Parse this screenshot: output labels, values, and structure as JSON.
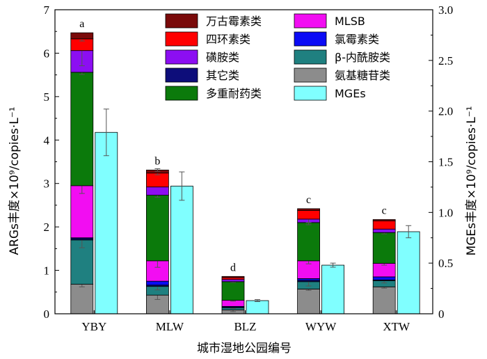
{
  "chart_data": {
    "type": "bar",
    "xlabel": "城市湿地公园编号",
    "ylabel_left": "ARGs丰度×10⁹/copies·L⁻¹",
    "ylabel_right": "MGEs丰度×10⁹/copies·L⁻¹",
    "ylim_left": [
      0,
      7
    ],
    "ylim_right": [
      0,
      3.0
    ],
    "yticks_left": [
      "0",
      "1",
      "2",
      "3",
      "4",
      "5",
      "6",
      "7"
    ],
    "yticks_right": [
      "0",
      "0.5",
      "1.0",
      "1.5",
      "2.0",
      "2.5",
      "3.0"
    ],
    "categories": [
      "YBY",
      "MLW",
      "BLZ",
      "WYW",
      "XTW"
    ],
    "significance": [
      "a",
      "b",
      "d",
      "c",
      "c"
    ],
    "arg_series": [
      {
        "name": "氨基糖苷类",
        "color": "#8c8c8c",
        "values": [
          0.68,
          0.43,
          0.09,
          0.57,
          0.62
        ]
      },
      {
        "name": "β-内酰胺类",
        "color": "#1f8080",
        "values": [
          1.02,
          0.2,
          0.05,
          0.17,
          0.14
        ]
      },
      {
        "name": "其它类",
        "color": "#0d0d7a",
        "values": [
          0.03,
          0.03,
          0.01,
          0.03,
          0.02
        ]
      },
      {
        "name": "氯霉素类",
        "color": "#0b0bf5",
        "values": [
          0.02,
          0.09,
          0.02,
          0.04,
          0.07
        ]
      },
      {
        "name": "MLSB",
        "color": "#f20df2",
        "values": [
          1.2,
          0.47,
          0.14,
          0.41,
          0.31
        ]
      },
      {
        "name": "多重耐药类",
        "color": "#0b7a0b",
        "values": [
          2.61,
          1.51,
          0.43,
          0.88,
          0.71
        ]
      },
      {
        "name": "磺胺类",
        "color": "#8c0ef2",
        "values": [
          0.5,
          0.19,
          0.05,
          0.08,
          0.08
        ]
      },
      {
        "name": "四环素类",
        "color": "#ff0000",
        "values": [
          0.27,
          0.32,
          0.04,
          0.2,
          0.19
        ]
      },
      {
        "name": "万古霉素类",
        "color": "#7a0a0a",
        "values": [
          0.14,
          0.07,
          0.03,
          0.04,
          0.03
        ]
      }
    ],
    "arg_errors": [
      [
        0.06,
        0.1,
        0.04,
        0.03,
        0.03
      ],
      [
        0.18,
        0.08,
        0.02,
        0.1,
        0.05
      ],
      [
        0,
        0,
        0,
        0,
        0
      ],
      [
        0,
        0,
        0,
        0,
        0
      ],
      [
        0.18,
        0.15,
        0.02,
        0.07,
        0.04
      ],
      [
        0.05,
        0.05,
        0.02,
        0.05,
        0.03
      ],
      [
        0.35,
        0,
        0,
        0.08,
        0
      ],
      [
        0.05,
        0.04,
        0,
        0,
        0
      ],
      [
        0,
        0.03,
        0,
        0,
        0
      ]
    ],
    "mges": {
      "name": "MGEs",
      "color": "#80ffff",
      "values": [
        1.79,
        1.26,
        0.13,
        0.48,
        0.81
      ],
      "errors": [
        0.23,
        0.14,
        0.01,
        0.02,
        0.06
      ]
    },
    "legend": {
      "placement": "top-center",
      "order": [
        "万古霉素类",
        "四环素类",
        "磺胺类",
        "其它类",
        "多重耐药类",
        "MLSB",
        "氯霉素类",
        "β-内酰胺类",
        "氨基糖苷类",
        "MGEs"
      ]
    }
  }
}
